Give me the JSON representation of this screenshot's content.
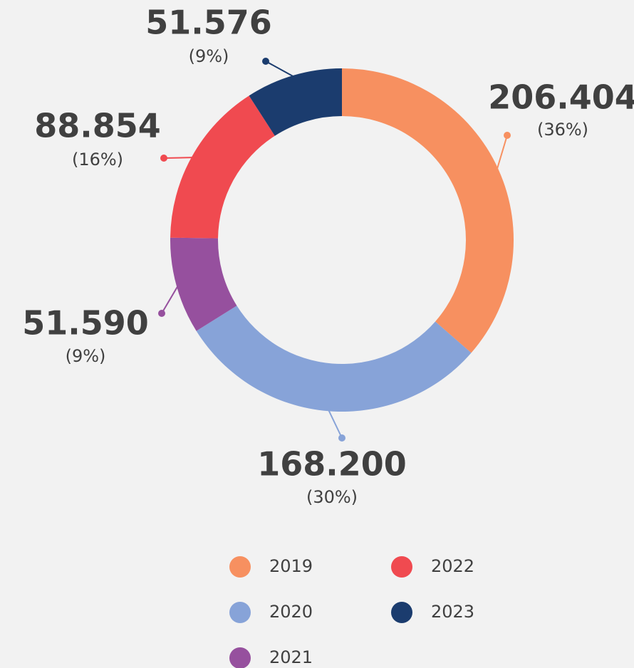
{
  "chart_data": {
    "type": "donut",
    "categories": [
      "2019",
      "2020",
      "2021",
      "2022",
      "2023"
    ],
    "values": [
      206404,
      168200,
      51590,
      88854,
      51576
    ],
    "value_labels": [
      "206.404",
      "168.200",
      "51.590",
      "88.854",
      "51.576"
    ],
    "percent_labels": [
      "(36%)",
      "(30%)",
      "(9%)",
      "(16%)",
      "(9%)"
    ],
    "colors": [
      "#f79060",
      "#87a3d8",
      "#96509e",
      "#f04a50",
      "#1b3c6e"
    ],
    "legend": "bottom"
  }
}
